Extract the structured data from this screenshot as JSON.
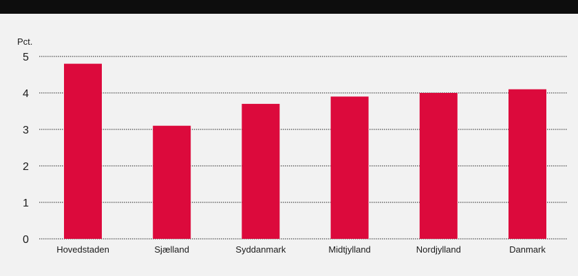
{
  "colors": {
    "bar": "#dc0a3c",
    "grid": "#1a1a1a",
    "top_bar": "#0d0d0d",
    "background": "#f2f2f2"
  },
  "chart_data": {
    "type": "bar",
    "ylabel": "Pct.",
    "categories": [
      "Hovedstaden",
      "Sjælland",
      "Syddanmark",
      "Midtjylland",
      "Nordjylland",
      "Danmark"
    ],
    "values": [
      4.8,
      3.1,
      3.7,
      3.9,
      4.0,
      4.1
    ],
    "ylim": [
      0,
      5
    ],
    "yticks": [
      "0",
      "1",
      "2",
      "3",
      "4",
      "5"
    ],
    "grid": true,
    "legend": "none"
  }
}
